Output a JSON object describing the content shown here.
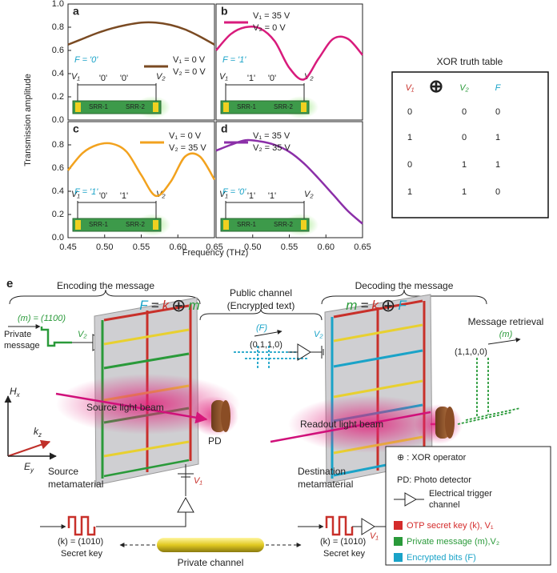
{
  "figure": {
    "ylabel": "Transmission amplitude",
    "xlabel": "Frequency (THz)"
  },
  "chart_data": [
    {
      "type": "line",
      "label": "a",
      "annotation": "F = '0'",
      "x": [
        0.45,
        0.47,
        0.49,
        0.51,
        0.53,
        0.55,
        0.57,
        0.59,
        0.61,
        0.63,
        0.65
      ],
      "xlim": [
        0.45,
        0.65
      ],
      "ylim": [
        0,
        1
      ],
      "yticks": [
        {
          "value": 0,
          "label": "0.0"
        },
        0.2,
        0.4,
        0.6,
        0.8,
        {
          "value": 1,
          "label": "1.0"
        }
      ],
      "series": [
        {
          "name": [
            "V₁ = 0 V",
            "V₂ = 0 V"
          ],
          "color": "#7a4a22",
          "values": [
            0.65,
            0.7,
            0.75,
            0.79,
            0.82,
            0.84,
            0.84,
            0.82,
            0.78,
            0.72,
            0.65
          ]
        }
      ],
      "inset_labels": [
        "V₁",
        "'0'",
        "'0'",
        "V₂",
        "SRR-1",
        "SRR-2"
      ]
    },
    {
      "type": "line",
      "label": "b",
      "annotation": "F = '1'",
      "x": [
        0.45,
        0.47,
        0.49,
        0.51,
        0.53,
        0.55,
        0.57,
        0.59,
        0.61,
        0.63,
        0.65
      ],
      "xlim": [
        0.45,
        0.65
      ],
      "ylim": [
        0,
        1
      ],
      "series": [
        {
          "name": [
            "V₁ = 35 V",
            "V₂ = 0 V"
          ],
          "color": "#d81b7c",
          "values": [
            0.6,
            0.74,
            0.8,
            0.79,
            0.68,
            0.45,
            0.35,
            0.53,
            0.7,
            0.7,
            0.56
          ]
        }
      ],
      "inset_labels": [
        "V₁",
        "'1'",
        "'0'",
        "V₂",
        "SRR-1",
        "SRR-2"
      ]
    },
    {
      "type": "line",
      "label": "c",
      "annotation": "F = '1'",
      "x": [
        0.45,
        0.47,
        0.49,
        0.51,
        0.53,
        0.55,
        0.57,
        0.59,
        0.61,
        0.63,
        0.65
      ],
      "xlim": [
        0.45,
        0.65
      ],
      "ylim": [
        0,
        1
      ],
      "yticks": [
        {
          "value": 0,
          "label": "0.0"
        },
        0.2,
        0.4,
        0.6,
        0.8
      ],
      "xticks": [
        0.45,
        {
          "value": 0.5,
          "label": "0.50"
        },
        0.55,
        {
          "value": 0.6,
          "label": "0.60"
        },
        0.65
      ],
      "series": [
        {
          "name": [
            "V₁ = 0 V",
            "V₂ = 35 V"
          ],
          "color": "#f2a21e",
          "values": [
            0.58,
            0.73,
            0.8,
            0.81,
            0.74,
            0.54,
            0.36,
            0.48,
            0.7,
            0.7,
            0.5
          ]
        }
      ],
      "inset_labels": [
        "V₁",
        "'0'",
        "'1'",
        "V₂",
        "SRR-1",
        "SRR-2"
      ]
    },
    {
      "type": "line",
      "label": "d",
      "annotation": "F = '0'",
      "x": [
        0.45,
        0.47,
        0.49,
        0.51,
        0.53,
        0.55,
        0.57,
        0.59,
        0.61,
        0.63,
        0.65
      ],
      "xlim": [
        0.45,
        0.65
      ],
      "ylim": [
        0,
        1
      ],
      "xticks": [
        {
          "value": 0.5,
          "label": "0.50"
        },
        0.55,
        {
          "value": 0.6,
          "label": "0.60"
        },
        0.65
      ],
      "series": [
        {
          "name": [
            "V₁ = 35 V",
            "V₂ = 35 V"
          ],
          "color": "#8b2fa8",
          "values": [
            0.75,
            0.8,
            0.84,
            0.83,
            0.8,
            0.74,
            0.64,
            0.51,
            0.37,
            0.23,
            0.12
          ]
        }
      ],
      "inset_labels": [
        "V₁",
        "'1'",
        "'1'",
        "V₂",
        "SRR-1",
        "SRR-2"
      ]
    }
  ],
  "truth_table": {
    "title": "XOR truth table",
    "header": [
      "V₁",
      "⊕",
      "V₂",
      "F"
    ],
    "rows": [
      [
        "0",
        "0",
        "0"
      ],
      [
        "1",
        "0",
        "1"
      ],
      [
        "0",
        "1",
        "1"
      ],
      [
        "1",
        "1",
        "0"
      ]
    ]
  },
  "diagram": {
    "label": "e",
    "encoding_title": "Encoding the message",
    "public_title": [
      "Public channel",
      "(Encrypted text)"
    ],
    "decoding_title": "Decoding the message",
    "private_message": {
      "code": "(m) = (1100)",
      "label": [
        "Private",
        "message"
      ],
      "voltage": "V₂"
    },
    "encoding_formula": [
      "F",
      "=",
      "k",
      "⊕",
      "m"
    ],
    "encrypted": {
      "symbol": "(F)",
      "bits": "(0,1,1,0)",
      "voltage": "V₂"
    },
    "decoding_formula": [
      "m",
      "=",
      "k",
      "⊕",
      "F"
    ],
    "retrieval": {
      "title": "Message retrieval",
      "symbol": "(m)",
      "bits": "(1,1,0,0)"
    },
    "axes": [
      [
        "H",
        "x"
      ],
      [
        "k",
        "z"
      ],
      [
        "E",
        "y"
      ]
    ],
    "source_beam": "Source light beam",
    "readout_beam": "Readout light beam",
    "detectors": [
      "PD",
      "PD"
    ],
    "source_material": [
      "Source",
      "metamaterial"
    ],
    "destination_material": [
      "Destination",
      "metamaterial"
    ],
    "source_voltage": "V₁",
    "destination_voltage": "V₁",
    "source_key": {
      "code": "(k) = (1010)",
      "label": "Secret key"
    },
    "destination_key": {
      "code": "(k) = (1010)",
      "label": "Secret key"
    },
    "private_channel": "Private channel",
    "legend": [
      "⊕ : XOR operator",
      "PD: Photo detector",
      "Electrical trigger",
      "channel",
      "OTP secret key (k), V₁",
      "Private message (m),V₂",
      "Encrypted bits (F)"
    ]
  }
}
